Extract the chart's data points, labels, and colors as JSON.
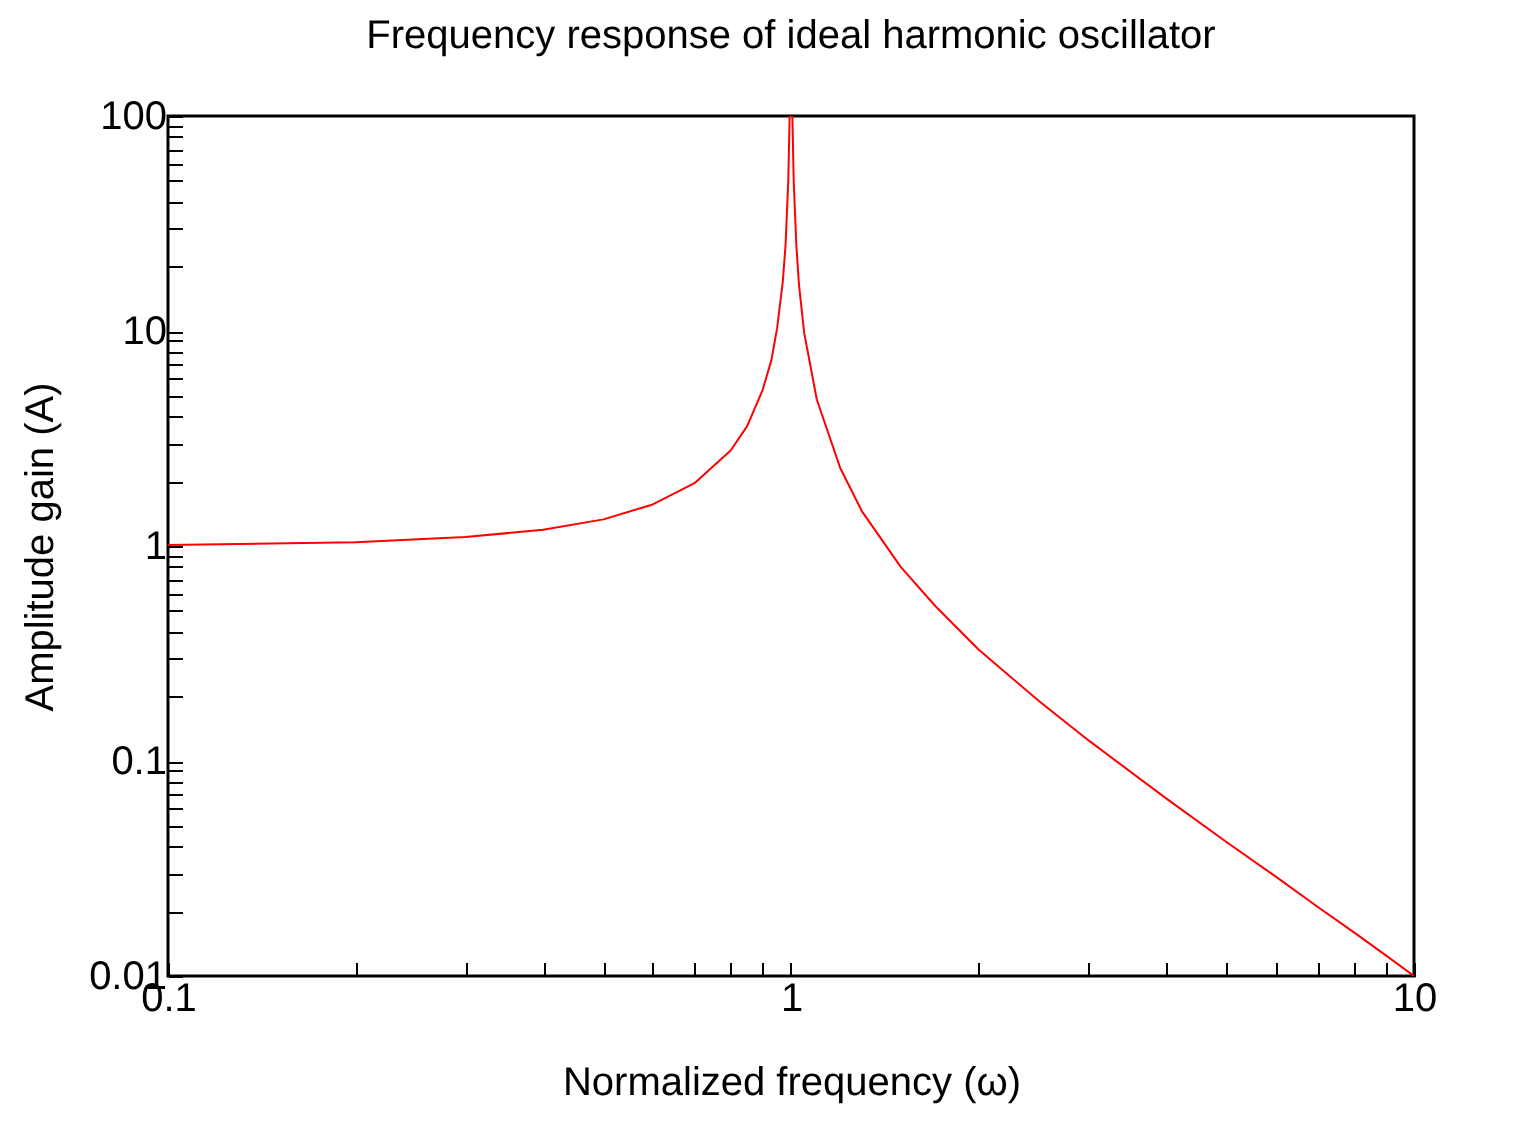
{
  "chart_data": {
    "type": "line",
    "title": "Frequency response of ideal harmonic oscillator",
    "xlabel": "Normalized frequency (ω)",
    "ylabel": "Amplitude gain (A)",
    "log": "xy",
    "grid": false,
    "marker": "none",
    "line_style": "solid",
    "xlim": [
      0.1,
      10
    ],
    "ylim": [
      0.01,
      100
    ],
    "xticks": [
      0.1,
      {
        "value": 0.2,
        "label": null
      },
      {
        "value": 0.3,
        "label": null
      },
      {
        "value": 0.4,
        "label": null
      },
      {
        "value": 0.5,
        "label": null
      },
      {
        "value": 0.6,
        "label": null
      },
      {
        "value": 0.7,
        "label": null
      },
      {
        "value": 0.8,
        "label": null
      },
      {
        "value": 0.9,
        "label": null
      },
      1,
      {
        "value": 2,
        "label": null
      },
      {
        "value": 3,
        "label": null
      },
      {
        "value": 4,
        "label": null
      },
      {
        "value": 5,
        "label": null
      },
      {
        "value": 6,
        "label": null
      },
      {
        "value": 7,
        "label": null
      },
      {
        "value": 8,
        "label": null
      },
      {
        "value": 9,
        "label": null
      },
      10
    ],
    "yticks": [
      0.01,
      {
        "value": 0.02,
        "label": null
      },
      {
        "value": 0.03,
        "label": null
      },
      {
        "value": 0.04,
        "label": null
      },
      {
        "value": 0.05,
        "label": null
      },
      {
        "value": 0.06,
        "label": null
      },
      {
        "value": 0.07,
        "label": null
      },
      {
        "value": 0.08,
        "label": null
      },
      {
        "value": 0.09,
        "label": null
      },
      0.1,
      {
        "value": 0.2,
        "label": null
      },
      {
        "value": 0.3,
        "label": null
      },
      {
        "value": 0.4,
        "label": null
      },
      {
        "value": 0.5,
        "label": null
      },
      {
        "value": 0.6,
        "label": null
      },
      {
        "value": 0.7,
        "label": null
      },
      {
        "value": 0.8,
        "label": null
      },
      {
        "value": 0.9,
        "label": null
      },
      1,
      {
        "value": 2,
        "label": null
      },
      {
        "value": 3,
        "label": null
      },
      {
        "value": 4,
        "label": null
      },
      {
        "value": 5,
        "label": null
      },
      {
        "value": 6,
        "label": null
      },
      {
        "value": 7,
        "label": null
      },
      {
        "value": 8,
        "label": null
      },
      {
        "value": 9,
        "label": null
      },
      10,
      {
        "value": 20,
        "label": null
      },
      {
        "value": 30,
        "label": null
      },
      {
        "value": 40,
        "label": null
      },
      {
        "value": 50,
        "label": null
      },
      {
        "value": 60,
        "label": null
      },
      {
        "value": 70,
        "label": null
      },
      {
        "value": 80,
        "label": null
      },
      {
        "value": 90,
        "label": null
      },
      100
    ],
    "x": [
      0.1,
      0.2,
      0.3,
      0.4,
      0.5,
      0.6,
      0.7,
      0.8,
      0.85,
      0.9,
      0.93,
      0.95,
      0.97,
      0.98,
      0.99,
      0.995,
      1.005,
      1.01,
      1.02,
      1.03,
      1.05,
      1.1,
      1.2,
      1.3,
      1.5,
      1.7,
      2,
      2.5,
      3,
      4,
      5,
      6,
      7,
      8,
      9,
      10
    ],
    "series": [
      {
        "color": "#ff0000",
        "values": [
          1.01,
          1.04,
          1.1,
          1.19,
          1.33,
          1.56,
          1.96,
          2.78,
          3.6,
          5.3,
          7.3,
          10.3,
          16.9,
          25,
          50,
          100,
          100,
          50,
          25,
          16.4,
          9.8,
          4.8,
          2.3,
          1.45,
          0.8,
          0.53,
          0.33,
          0.19,
          0.125,
          0.067,
          0.042,
          0.029,
          0.021,
          0.016,
          0.0125,
          0.01
        ]
      }
    ]
  }
}
